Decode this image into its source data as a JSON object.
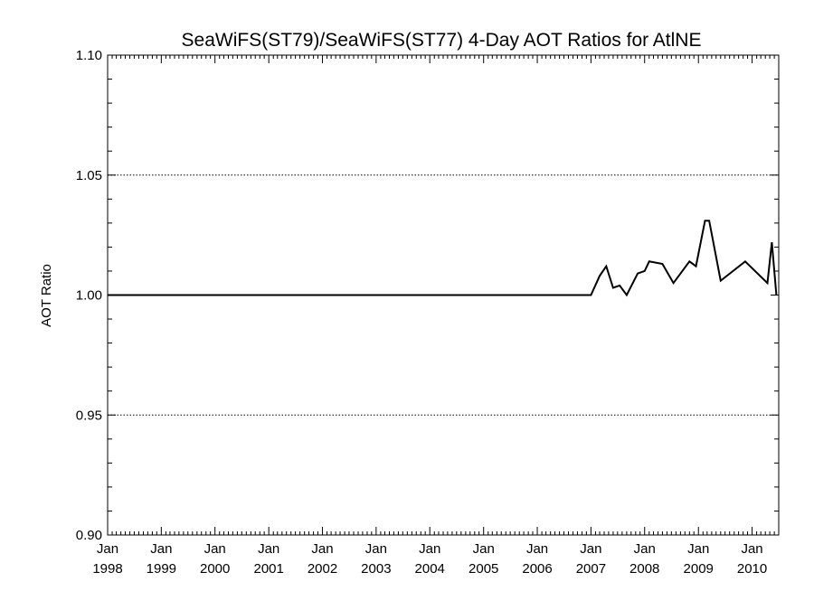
{
  "chart_data": {
    "type": "line",
    "title": "SeaWiFS(ST79)/SeaWiFS(ST77) 4-Day AOT Ratios for AtlNE",
    "ylabel": "AOT Ratio",
    "xlabel": "",
    "xlim": [
      "1998-01-01",
      "2010-07-01"
    ],
    "ylim": [
      0.9,
      1.1
    ],
    "y_ticks": [
      "0.90",
      "0.95",
      "1.00",
      "1.05",
      "1.10"
    ],
    "y_gridlines": [
      0.95,
      1.05
    ],
    "x_ticks": [
      {
        "month": "Jan",
        "year": "1998",
        "date": "1998-01-01"
      },
      {
        "month": "Jan",
        "year": "1999",
        "date": "1999-01-01"
      },
      {
        "month": "Jan",
        "year": "2000",
        "date": "2000-01-01"
      },
      {
        "month": "Jan",
        "year": "2001",
        "date": "2001-01-01"
      },
      {
        "month": "Jan",
        "year": "2002",
        "date": "2002-01-01"
      },
      {
        "month": "Jan",
        "year": "2003",
        "date": "2003-01-01"
      },
      {
        "month": "Jan",
        "year": "2004",
        "date": "2004-01-01"
      },
      {
        "month": "Jan",
        "year": "2005",
        "date": "2005-01-01"
      },
      {
        "month": "Jan",
        "year": "2006",
        "date": "2006-01-01"
      },
      {
        "month": "Jan",
        "year": "2007",
        "date": "2007-01-01"
      },
      {
        "month": "Jan",
        "year": "2008",
        "date": "2008-01-01"
      },
      {
        "month": "Jan",
        "year": "2009",
        "date": "2009-01-01"
      },
      {
        "month": "Jan",
        "year": "2010",
        "date": "2010-01-01"
      }
    ],
    "grid": "dotted horizontal at 0.95 and 1.05",
    "series": [
      {
        "color": "#000000",
        "x": [
          "1998-01-01",
          "2007-01-01",
          "2007-03-01",
          "2007-04-15",
          "2007-06-01",
          "2007-07-15",
          "2007-09-01",
          "2007-11-15",
          "2008-01-01",
          "2008-02-01",
          "2008-05-01",
          "2008-07-15",
          "2008-11-01",
          "2008-12-15",
          "2009-02-15",
          "2009-03-15",
          "2009-06-01",
          "2009-11-15",
          "2010-04-15",
          "2010-05-15",
          "2010-06-15"
        ],
        "y": [
          1.0,
          1.0,
          1.008,
          1.012,
          1.003,
          1.004,
          1.0,
          1.009,
          1.01,
          1.014,
          1.013,
          1.005,
          1.014,
          1.012,
          1.031,
          1.031,
          1.006,
          1.014,
          1.005,
          1.022,
          1.0
        ]
      }
    ]
  }
}
